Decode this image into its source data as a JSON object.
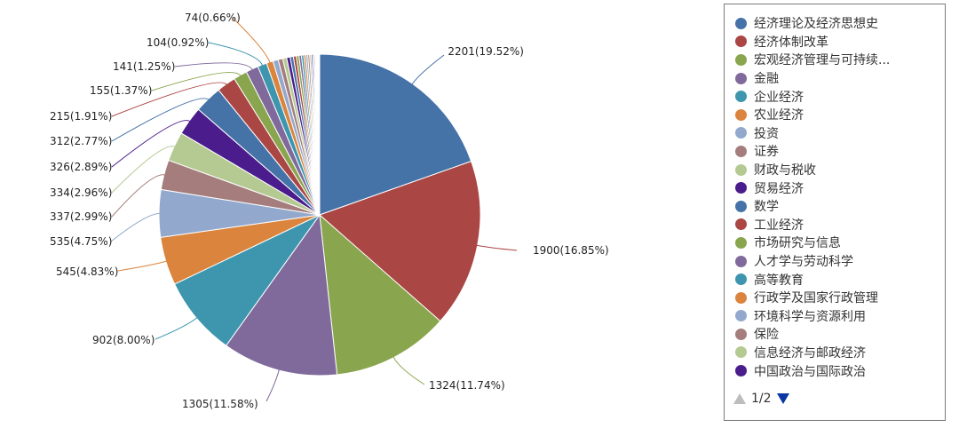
{
  "chart_data": {
    "type": "pie",
    "title": "",
    "slices": [
      {
        "name": "经济理论及经济思想史",
        "value": 2201,
        "label": "2201(19.52%)",
        "color": "#4572A7"
      },
      {
        "name": "经济体制改革",
        "value": 1900,
        "label": "1900(16.85%)",
        "color": "#AA4643"
      },
      {
        "name": "宏观经济管理与可持续发展",
        "value": 1324,
        "label": "1324(11.74%)",
        "color": "#89A54E"
      },
      {
        "name": "金融",
        "value": 1305,
        "label": "1305(11.58%)",
        "color": "#80699B"
      },
      {
        "name": "企业经济",
        "value": 902,
        "label": "902(8.00%)",
        "color": "#3D96AE"
      },
      {
        "name": "农业经济",
        "value": 545,
        "label": "545(4.83%)",
        "color": "#DB843D"
      },
      {
        "name": "投资",
        "value": 535,
        "label": "535(4.75%)",
        "color": "#92A8CD"
      },
      {
        "name": "证券",
        "value": 337,
        "label": "337(2.99%)",
        "color": "#A47D7C"
      },
      {
        "name": "财政与税收",
        "value": 334,
        "label": "334(2.96%)",
        "color": "#B5CA92"
      },
      {
        "name": "贸易经济",
        "value": 326,
        "label": "326(2.89%)",
        "color": "#4B1C8C"
      },
      {
        "name": "数学",
        "value": 312,
        "label": "312(2.77%)",
        "color": "#4572A7"
      },
      {
        "name": "工业经济",
        "value": 215,
        "label": "215(1.91%)",
        "color": "#AA4643"
      },
      {
        "name": "市场研究与信息",
        "value": 155,
        "label": "155(1.37%)",
        "color": "#89A54E"
      },
      {
        "name": "人才学与劳动科学",
        "value": 141,
        "label": "141(1.25%)",
        "color": "#80699B"
      },
      {
        "name": "高等教育",
        "value": 104,
        "label": "104(0.92%)",
        "color": "#3D96AE"
      },
      {
        "name": "行政学及国家行政管理",
        "value": 74,
        "label": "74(0.66%)",
        "color": "#DB843D"
      },
      {
        "name": "环境科学与资源利用",
        "value": 60,
        "color": "#92A8CD"
      },
      {
        "name": "保险",
        "value": 52,
        "color": "#A47D7C"
      },
      {
        "name": "信息经济与邮政经济",
        "value": 45,
        "color": "#B5CA92"
      },
      {
        "name": "中国政治与国际政治",
        "value": 40,
        "color": "#4B1C8C"
      }
    ],
    "extra_slices": {
      "values": [
        36,
        33,
        30,
        28,
        26,
        24,
        22,
        20,
        18,
        16,
        14,
        12,
        10,
        9,
        8,
        7,
        6,
        5,
        4,
        3
      ],
      "colors": [
        "#4572A7",
        "#AA4643",
        "#89A54E",
        "#80699B",
        "#3D96AE",
        "#DB843D",
        "#92A8CD",
        "#A47D7C",
        "#B5CA92",
        "#4B1C8C"
      ]
    },
    "legend_position": "right"
  },
  "legend": {
    "items": [
      {
        "label": "经济理论及经济思想史",
        "color": "#4572A7"
      },
      {
        "label": "经济体制改革",
        "color": "#AA4643"
      },
      {
        "label": "宏观经济管理与可持续...",
        "color": "#89A54E"
      },
      {
        "label": "金融",
        "color": "#80699B"
      },
      {
        "label": "企业经济",
        "color": "#3D96AE"
      },
      {
        "label": "农业经济",
        "color": "#DB843D"
      },
      {
        "label": "投资",
        "color": "#92A8CD"
      },
      {
        "label": "证券",
        "color": "#A47D7C"
      },
      {
        "label": "财政与税收",
        "color": "#B5CA92"
      },
      {
        "label": "贸易经济",
        "color": "#4B1C8C"
      },
      {
        "label": "数学",
        "color": "#4572A7"
      },
      {
        "label": "工业经济",
        "color": "#AA4643"
      },
      {
        "label": "市场研究与信息",
        "color": "#89A54E"
      },
      {
        "label": "人才学与劳动科学",
        "color": "#80699B"
      },
      {
        "label": "高等教育",
        "color": "#3D96AE"
      },
      {
        "label": "行政学及国家行政管理",
        "color": "#DB843D"
      },
      {
        "label": "环境科学与资源利用",
        "color": "#92A8CD"
      },
      {
        "label": "保险",
        "color": "#A47D7C"
      },
      {
        "label": "信息经济与邮政经济",
        "color": "#B5CA92"
      },
      {
        "label": "中国政治与国际政治",
        "color": "#4B1C8C"
      }
    ],
    "pager": {
      "text": "1/2"
    }
  }
}
